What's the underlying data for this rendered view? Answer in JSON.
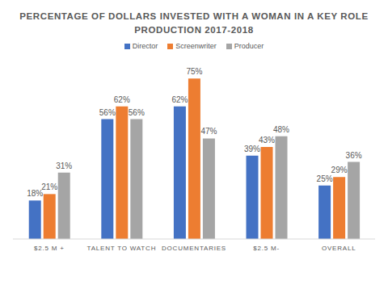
{
  "chart_data": {
    "type": "bar",
    "title": "PERCENTAGE OF DOLLARS INVESTED WITH A WOMAN IN A KEY ROLE",
    "subtitle": "PRODUCTION 2017-2018",
    "categories": [
      "$2.5 M +",
      "TALENT TO WATCH",
      "DOCUMENTARIES",
      "$2.5 M-",
      "OVERALL"
    ],
    "series": [
      {
        "name": "Director",
        "color": "#4472c4",
        "values": [
          18,
          56,
          62,
          39,
          25
        ],
        "value_labels": [
          "18%",
          "56%",
          "62%",
          "39%",
          "25%"
        ]
      },
      {
        "name": "Screenwriter",
        "color": "#ed7d31",
        "values": [
          21,
          62,
          75,
          43,
          29
        ],
        "value_labels": [
          "21%",
          "62%",
          "75%",
          "43%",
          "29%"
        ]
      },
      {
        "name": "Producer",
        "color": "#a5a5a5",
        "values": [
          31,
          56,
          47,
          48,
          36
        ],
        "value_labels": [
          "31%",
          "56%",
          "47%",
          "48%",
          "36%"
        ]
      }
    ],
    "ylim": [
      0,
      80
    ],
    "data_labels": true,
    "tick_labels": "x",
    "legend": "top"
  }
}
